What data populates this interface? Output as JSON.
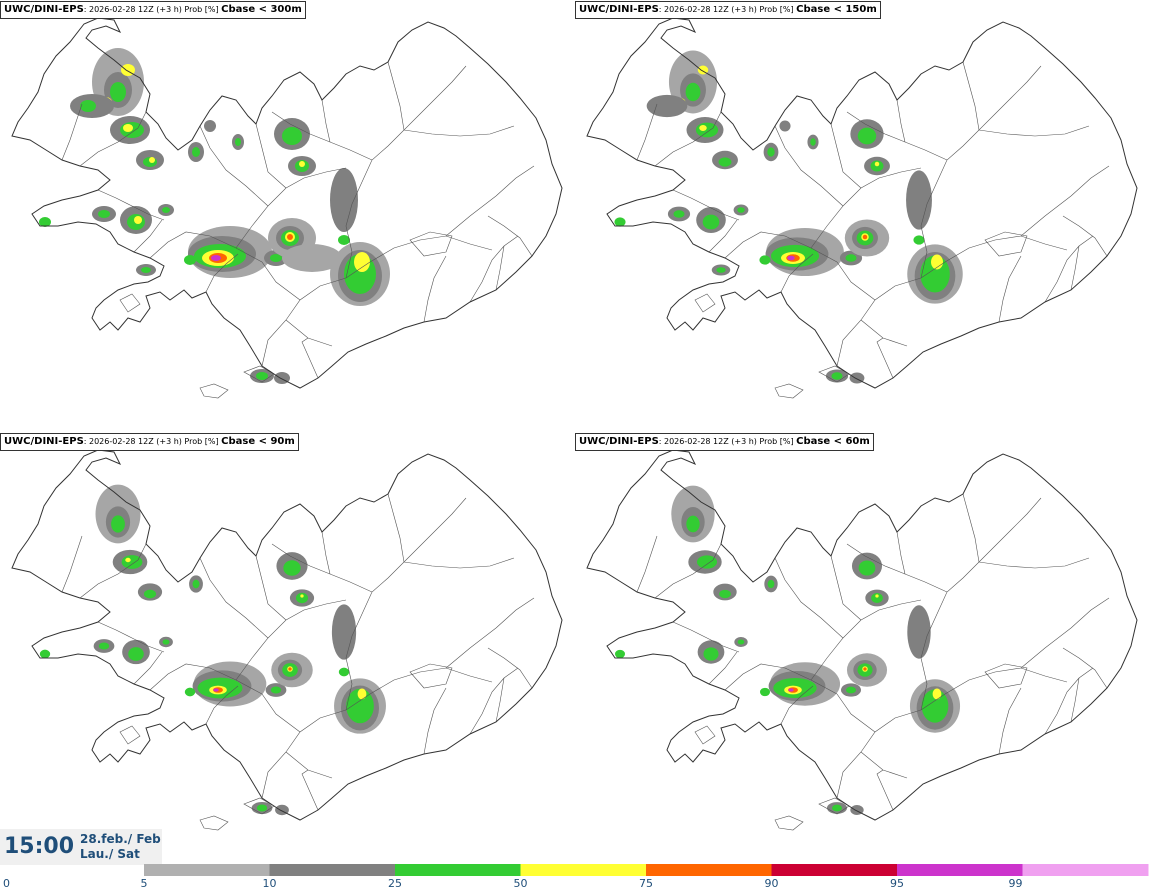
{
  "panels": [
    {
      "model": "UWC/DINI-EPS",
      "run": ": 2026-02-28 12Z (+3 h) Prob [%] ",
      "threshold": "Cbase < 300m",
      "level": 1.0
    },
    {
      "model": "UWC/DINI-EPS",
      "run": ": 2026-02-28 12Z (+3 h) Prob [%] ",
      "threshold": "Cbase < 150m",
      "level": 0.75
    },
    {
      "model": "UWC/DINI-EPS",
      "run": ": 2026-02-28 12Z (+3 h) Prob [%] ",
      "threshold": "Cbase < 90m",
      "level": 0.55
    },
    {
      "model": "UWC/DINI-EPS",
      "run": ": 2026-02-28 12Z (+3 h) Prob [%] ",
      "threshold": "Cbase < 60m",
      "level": 0.45
    }
  ],
  "valid_time": {
    "time": "15:00",
    "date": "28.feb./ Feb",
    "day": "Lau./ Sat"
  },
  "colorbar": {
    "ticks": [
      "0",
      "5",
      "10",
      "25",
      "50",
      "75",
      "90",
      "95",
      "99"
    ],
    "colors": [
      "#b0b0b0",
      "#808080",
      "#33cc33",
      "#ffff33",
      "#ff6600",
      "#cc0033",
      "#cc33cc",
      "#f0a0f0"
    ],
    "tick_color": "#1f4e79"
  },
  "colors": {
    "coast": "#333333",
    "grey_light": "#a6a6a6",
    "grey_dark": "#808080",
    "green": "#33cc33",
    "yellow": "#ffff33",
    "orange": "#ff6600",
    "red": "#cc0033",
    "magenta": "#cc33cc"
  }
}
